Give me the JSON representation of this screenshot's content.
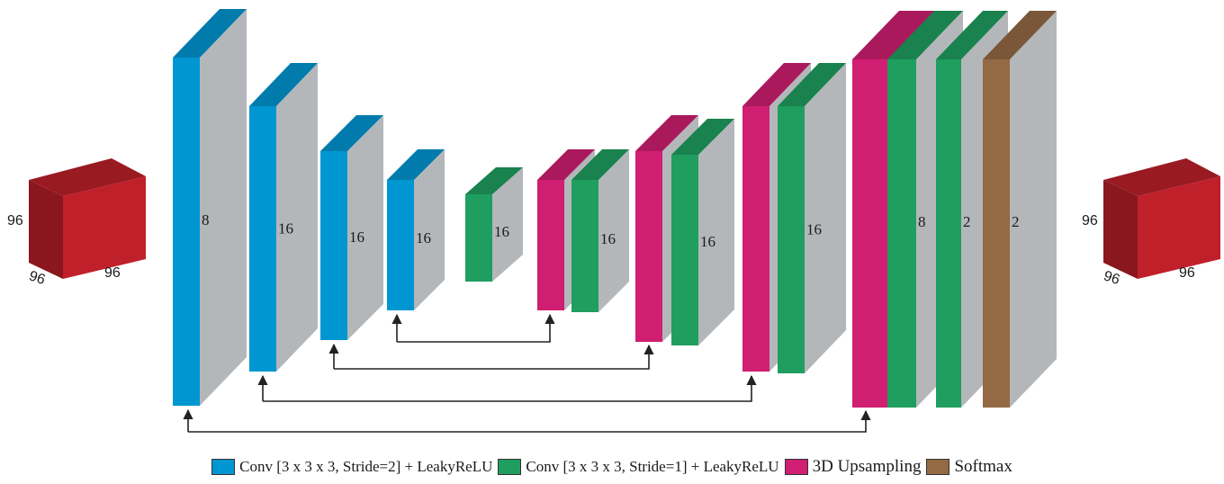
{
  "input_volume": {
    "dims": [
      "96",
      "96",
      "96"
    ],
    "color": "#c0202a"
  },
  "output_volume": {
    "dims": [
      "96",
      "96",
      "96"
    ],
    "color": "#c0202a"
  },
  "colors": {
    "conv_stride2": "#0096d2",
    "conv_stride1": "#1f9e5f",
    "upsampling": "#d01e72",
    "softmax": "#936a44"
  },
  "blocks": [
    {
      "kind": "conv_stride2",
      "label": "8"
    },
    {
      "kind": "conv_stride2",
      "label": "16"
    },
    {
      "kind": "conv_stride2",
      "label": "16"
    },
    {
      "kind": "conv_stride2",
      "label": "16"
    },
    {
      "kind": "conv_stride1",
      "label": "16"
    },
    {
      "kind": "upsampling",
      "label": ""
    },
    {
      "kind": "conv_stride1",
      "label": "16"
    },
    {
      "kind": "upsampling",
      "label": ""
    },
    {
      "kind": "conv_stride1",
      "label": "16"
    },
    {
      "kind": "upsampling",
      "label": ""
    },
    {
      "kind": "conv_stride1",
      "label": "16"
    },
    {
      "kind": "upsampling",
      "label": ""
    },
    {
      "kind": "conv_stride1",
      "label": "8"
    },
    {
      "kind": "conv_stride1",
      "label": "2"
    },
    {
      "kind": "softmax",
      "label": "2"
    }
  ],
  "legend": [
    {
      "kind": "conv_stride2",
      "label": "Conv [3 x 3 x 3, Stride=2]  + LeakyReLU"
    },
    {
      "kind": "conv_stride1",
      "label": "Conv [3 x 3 x 3, Stride=1]  + LeakyReLU"
    },
    {
      "kind": "upsampling",
      "label": "3D Upsampling"
    },
    {
      "kind": "softmax",
      "label": "Softmax"
    }
  ]
}
